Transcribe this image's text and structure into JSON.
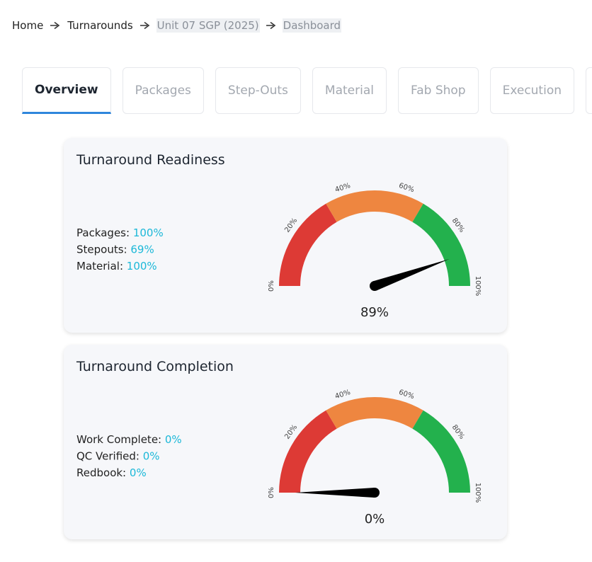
{
  "breadcrumb": [
    "Home",
    "Turnarounds",
    "Unit 07 SGP (2025)",
    "Dashboard"
  ],
  "tabs": [
    "Overview",
    "Packages",
    "Step-Outs",
    "Material",
    "Fab Shop",
    "Execution"
  ],
  "active_tab": 0,
  "cards": [
    {
      "title": "Turnaround Readiness",
      "stats": [
        {
          "label": "Packages:",
          "value": "100%"
        },
        {
          "label": "Stepouts:",
          "value": "69%"
        },
        {
          "label": "Material:",
          "value": "100%"
        }
      ],
      "gauge": {
        "type": "gauge",
        "value": 89,
        "value_label": "89%",
        "min": 0,
        "max": 100,
        "ticks": [
          {
            "value": 0,
            "label": "0%"
          },
          {
            "value": 20,
            "label": "20%"
          },
          {
            "value": 40,
            "label": "40%"
          },
          {
            "value": 60,
            "label": "60%"
          },
          {
            "value": 80,
            "label": "80%"
          },
          {
            "value": 100,
            "label": "100%"
          }
        ],
        "bands": [
          {
            "to": 33,
            "color": "#dd3a35"
          },
          {
            "to": 67,
            "color": "#ee8640"
          },
          {
            "to": 100,
            "color": "#23b14d"
          }
        ]
      }
    },
    {
      "title": "Turnaround Completion",
      "stats": [
        {
          "label": "Work Complete:",
          "value": "0%"
        },
        {
          "label": "QC Verified:",
          "value": "0%"
        },
        {
          "label": "Redbook:",
          "value": "0%"
        }
      ],
      "gauge": {
        "type": "gauge",
        "value": 0,
        "value_label": "0%",
        "min": 0,
        "max": 100,
        "ticks": [
          {
            "value": 0,
            "label": "0%"
          },
          {
            "value": 20,
            "label": "20%"
          },
          {
            "value": 40,
            "label": "40%"
          },
          {
            "value": 60,
            "label": "60%"
          },
          {
            "value": 80,
            "label": "80%"
          },
          {
            "value": 100,
            "label": "100%"
          }
        ],
        "bands": [
          {
            "to": 33,
            "color": "#dd3a35"
          },
          {
            "to": 67,
            "color": "#ee8640"
          },
          {
            "to": 100,
            "color": "#23b14d"
          }
        ]
      }
    }
  ]
}
